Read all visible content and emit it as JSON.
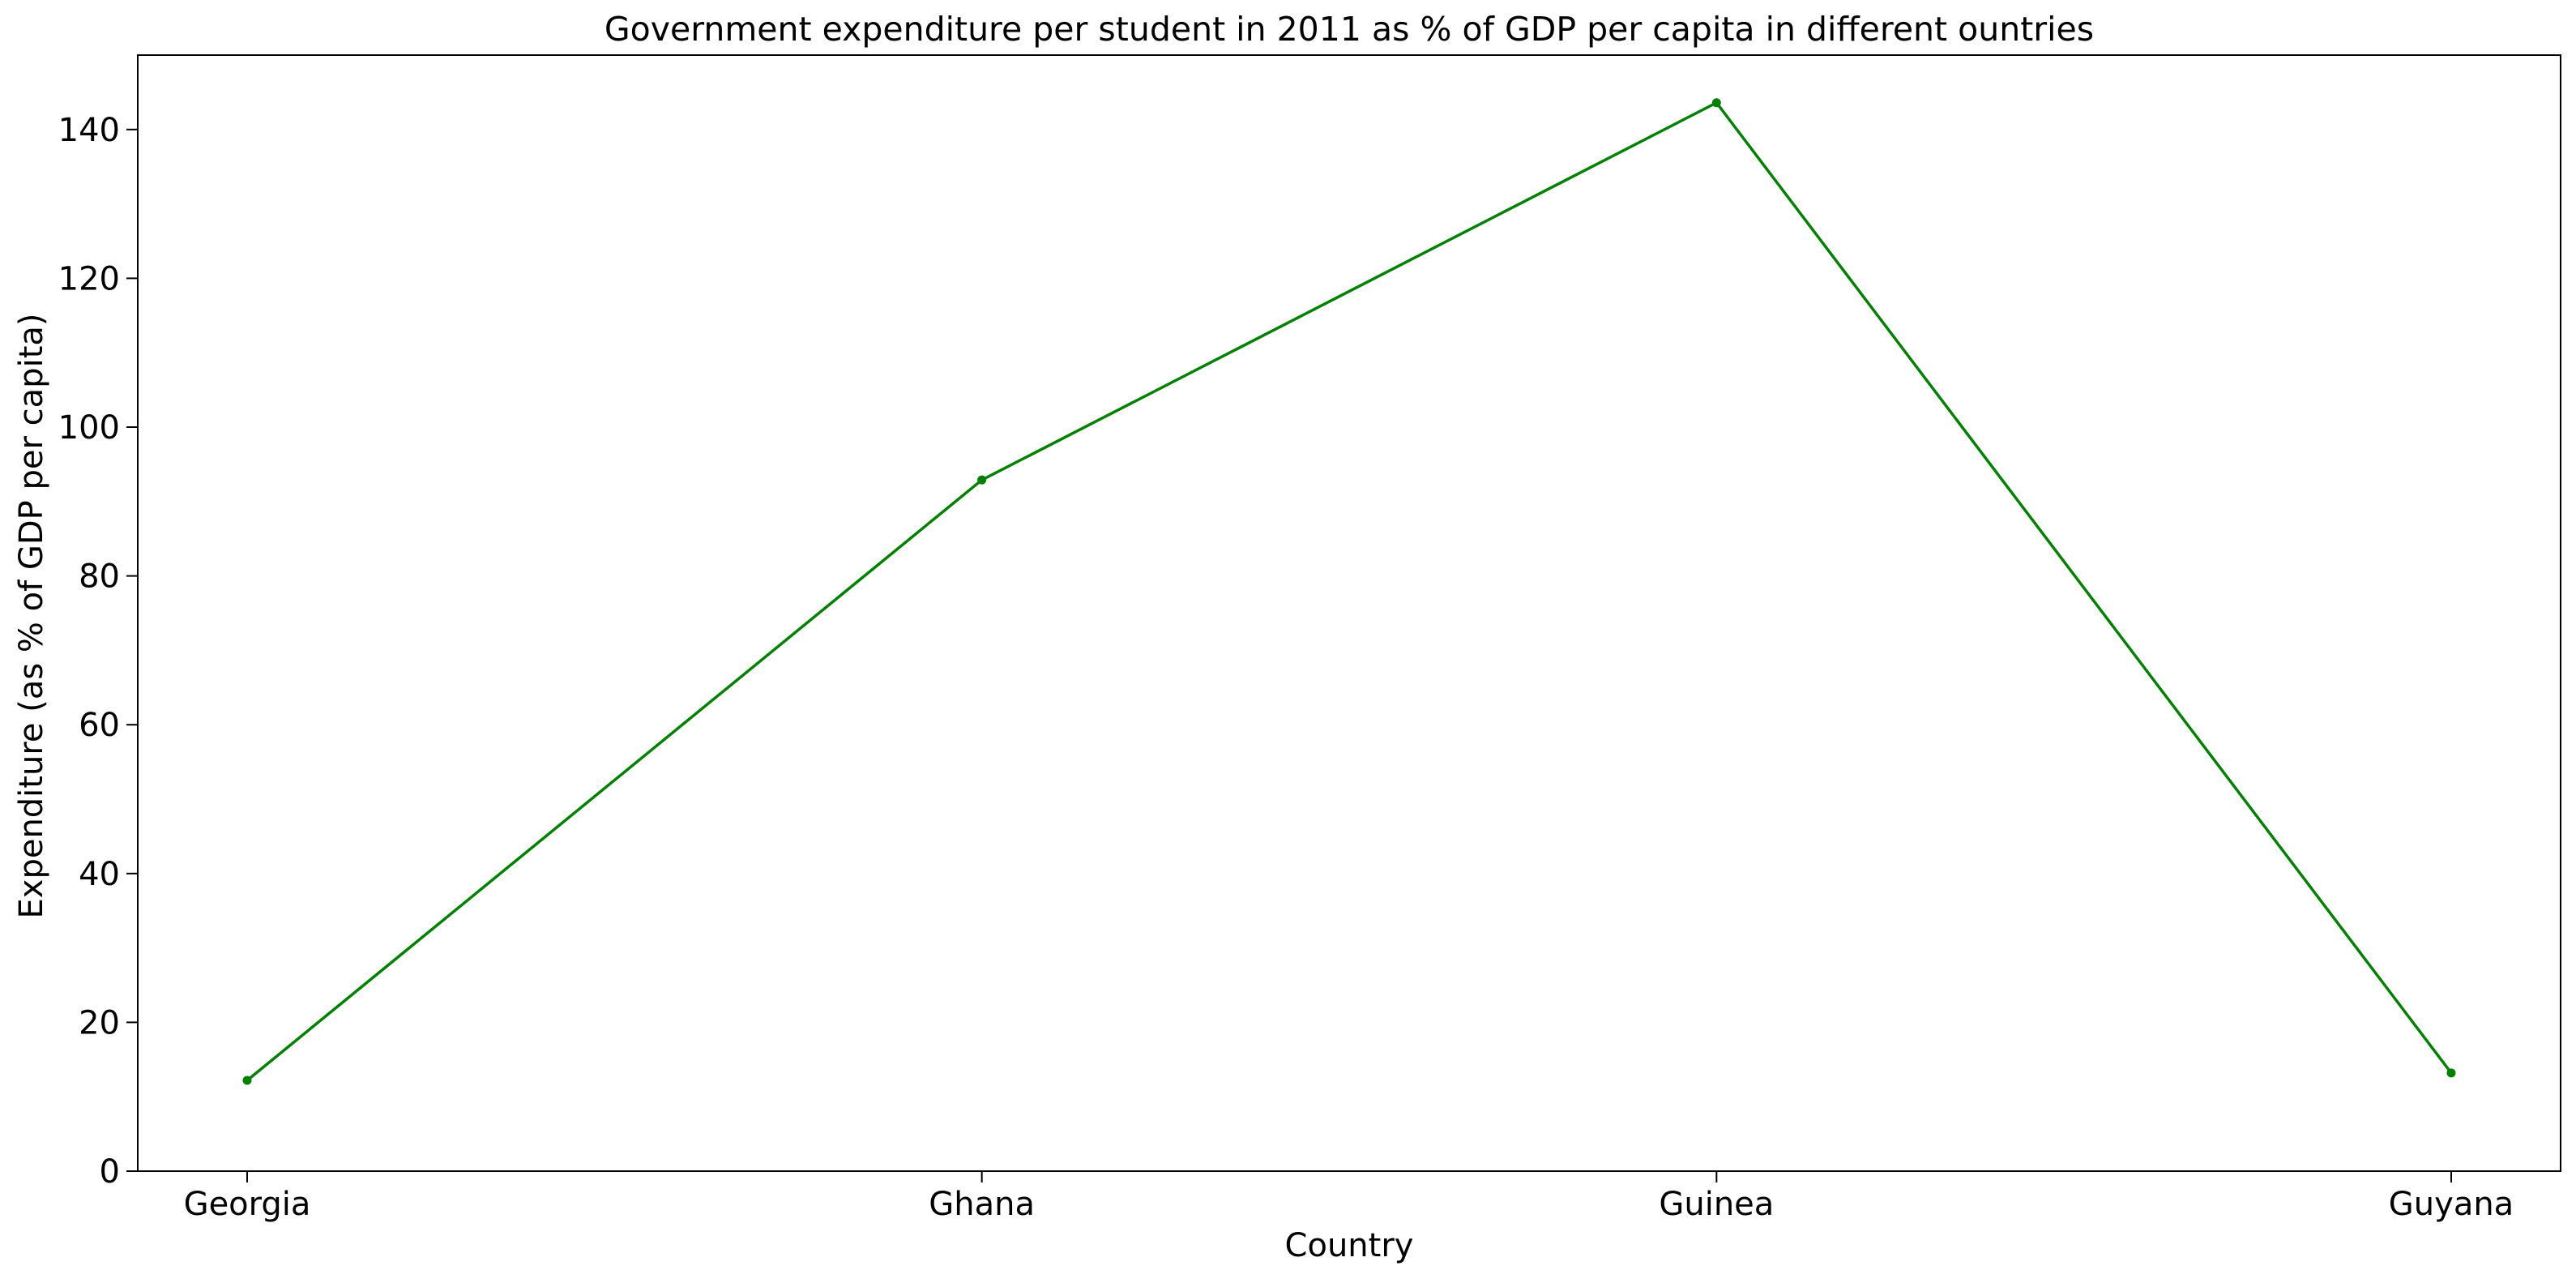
{
  "chart_data": {
    "type": "line",
    "title": "Government expenditure per student in 2011 as % of GDP per capita in different ountries",
    "xlabel": "Country",
    "ylabel": "Expenditure (as % of GDP per capita)",
    "categories": [
      "Georgia",
      "Ghana",
      "Guinea",
      "Guyana"
    ],
    "series": [
      {
        "values": [
          12.2,
          92.9,
          143.6,
          13.2
        ],
        "color": "#008000",
        "marker": "dot"
      }
    ],
    "ylim": [
      0,
      150
    ],
    "yticks": [
      0,
      20,
      40,
      60,
      80,
      100,
      120,
      140
    ],
    "grid": false,
    "legend": false
  }
}
